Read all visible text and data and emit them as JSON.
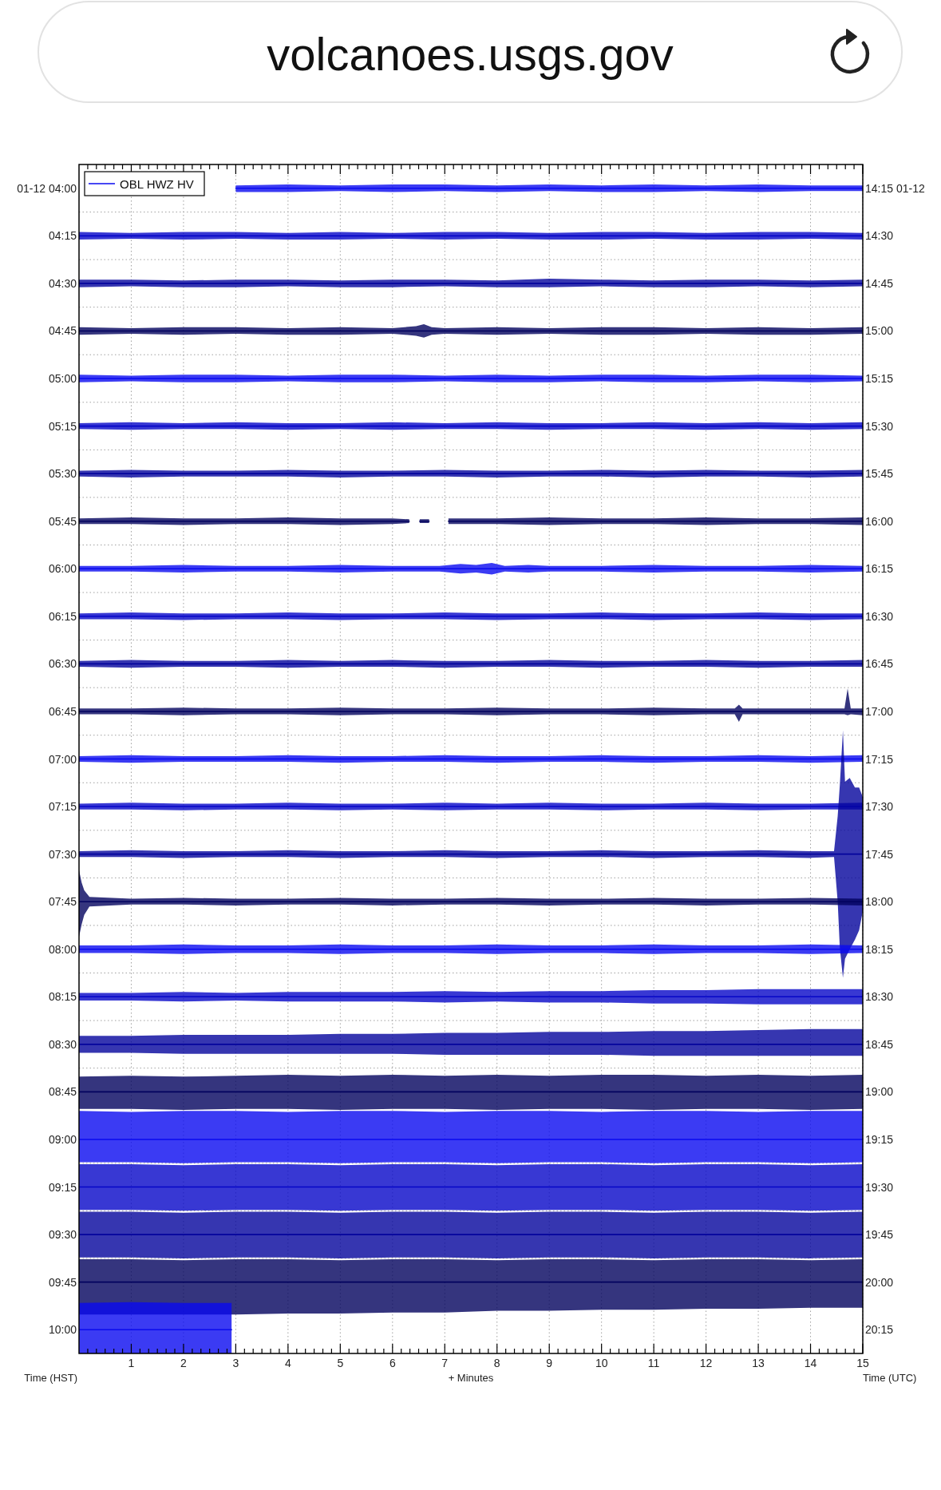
{
  "chart_data": {
    "type": "line",
    "annotations": [
      "volcanoes.usgs.gov"
    ],
    "xlabel": "+ Minutes",
    "ylabel": "Time (HST)",
    "y2label": "Time (UTC)",
    "legend": "top left",
    "grid": true,
    "xlim": [
      0,
      15
    ],
    "ylim": [
      10.125,
      3.875
    ],
    "y2lim": [
      20.375,
      14.125
    ],
    "xticks": [
      1,
      2,
      3,
      4,
      5,
      6,
      7,
      8,
      9,
      10,
      11,
      12,
      13,
      14,
      15,
      {
        "value": 0.167,
        "label": null
      },
      {
        "value": 0.333,
        "label": null
      },
      {
        "value": 0.5,
        "label": null
      },
      {
        "value": 0.667,
        "label": null
      },
      {
        "value": 0.833,
        "label": null
      },
      {
        "value": 1.167,
        "label": null
      },
      {
        "value": 1.333,
        "label": null
      },
      {
        "value": 1.5,
        "label": null
      },
      {
        "value": 1.667,
        "label": null
      },
      {
        "value": 1.833,
        "label": null
      },
      {
        "value": 2.167,
        "label": null
      },
      {
        "value": 2.333,
        "label": null
      },
      {
        "value": 2.5,
        "label": null
      },
      {
        "value": 2.667,
        "label": null
      },
      {
        "value": 2.833,
        "label": null
      },
      {
        "value": 3.167,
        "label": null
      },
      {
        "value": 3.333,
        "label": null
      },
      {
        "value": 3.5,
        "label": null
      },
      {
        "value": 3.667,
        "label": null
      },
      {
        "value": 3.833,
        "label": null
      },
      {
        "value": 4.167,
        "label": null
      },
      {
        "value": 4.333,
        "label": null
      },
      {
        "value": 4.5,
        "label": null
      },
      {
        "value": 4.667,
        "label": null
      },
      {
        "value": 4.833,
        "label": null
      },
      {
        "value": 5.167,
        "label": null
      },
      {
        "value": 5.333,
        "label": null
      },
      {
        "value": 5.5,
        "label": null
      },
      {
        "value": 5.667,
        "label": null
      },
      {
        "value": 5.833,
        "label": null
      },
      {
        "value": 6.167,
        "label": null
      },
      {
        "value": 6.333,
        "label": null
      },
      {
        "value": 6.5,
        "label": null
      },
      {
        "value": 6.667,
        "label": null
      },
      {
        "value": 6.833,
        "label": null
      },
      {
        "value": 7.167,
        "label": null
      },
      {
        "value": 7.333,
        "label": null
      },
      {
        "value": 7.5,
        "label": null
      },
      {
        "value": 7.667,
        "label": null
      },
      {
        "value": 7.833,
        "label": null
      },
      {
        "value": 8.167,
        "label": null
      },
      {
        "value": 8.333,
        "label": null
      },
      {
        "value": 8.5,
        "label": null
      },
      {
        "value": 8.667,
        "label": null
      },
      {
        "value": 8.833,
        "label": null
      },
      {
        "value": 9.167,
        "label": null
      },
      {
        "value": 9.333,
        "label": null
      },
      {
        "value": 9.5,
        "label": null
      },
      {
        "value": 9.667,
        "label": null
      },
      {
        "value": 9.833,
        "label": null
      },
      {
        "value": 10.167,
        "label": null
      },
      {
        "value": 10.333,
        "label": null
      },
      {
        "value": 10.5,
        "label": null
      },
      {
        "value": 10.667,
        "label": null
      },
      {
        "value": 10.833,
        "label": null
      },
      {
        "value": 11.167,
        "label": null
      },
      {
        "value": 11.333,
        "label": null
      },
      {
        "value": 11.5,
        "label": null
      },
      {
        "value": 11.667,
        "label": null
      },
      {
        "value": 11.833,
        "label": null
      },
      {
        "value": 12.167,
        "label": null
      },
      {
        "value": 12.333,
        "label": null
      },
      {
        "value": 12.5,
        "label": null
      },
      {
        "value": 12.667,
        "label": null
      },
      {
        "value": 12.833,
        "label": null
      },
      {
        "value": 13.167,
        "label": null
      },
      {
        "value": 13.333,
        "label": null
      },
      {
        "value": 13.5,
        "label": null
      },
      {
        "value": 13.667,
        "label": null
      },
      {
        "value": 13.833,
        "label": null
      },
      {
        "value": 14.167,
        "label": null
      },
      {
        "value": 14.333,
        "label": null
      },
      {
        "value": 14.5,
        "label": null
      },
      {
        "value": 14.667,
        "label": null
      },
      {
        "value": 14.833,
        "label": null
      }
    ],
    "yticks": [
      {
        "value": 4,
        "label": "01-12 04:00"
      },
      {
        "value": 4.25,
        "label": "04:15"
      },
      {
        "value": 4.5,
        "label": "04:30"
      },
      {
        "value": 4.75,
        "label": "04:45"
      },
      {
        "value": 5,
        "label": "05:00"
      },
      {
        "value": 5.25,
        "label": "05:15"
      },
      {
        "value": 5.5,
        "label": "05:30"
      },
      {
        "value": 5.75,
        "label": "05:45"
      },
      {
        "value": 6,
        "label": "06:00"
      },
      {
        "value": 6.25,
        "label": "06:15"
      },
      {
        "value": 6.5,
        "label": "06:30"
      },
      {
        "value": 6.75,
        "label": "06:45"
      },
      {
        "value": 7,
        "label": "07:00"
      },
      {
        "value": 7.25,
        "label": "07:15"
      },
      {
        "value": 7.5,
        "label": "07:30"
      },
      {
        "value": 7.75,
        "label": "07:45"
      },
      {
        "value": 8,
        "label": "08:00"
      },
      {
        "value": 8.25,
        "label": "08:15"
      },
      {
        "value": 8.5,
        "label": "08:30"
      },
      {
        "value": 8.75,
        "label": "08:45"
      },
      {
        "value": 9,
        "label": "09:00"
      },
      {
        "value": 9.25,
        "label": "09:15"
      },
      {
        "value": 9.5,
        "label": "09:30"
      },
      {
        "value": 9.75,
        "label": "09:45"
      },
      {
        "value": 10,
        "label": "10:00"
      },
      {
        "value": 4.125,
        "label": null
      },
      {
        "value": 4.375,
        "label": null
      },
      {
        "value": 4.625,
        "label": null
      },
      {
        "value": 4.875,
        "label": null
      },
      {
        "value": 5.125,
        "label": null
      },
      {
        "value": 5.375,
        "label": null
      },
      {
        "value": 5.625,
        "label": null
      },
      {
        "value": 5.875,
        "label": null
      },
      {
        "value": 6.125,
        "label": null
      },
      {
        "value": 6.375,
        "label": null
      },
      {
        "value": 6.625,
        "label": null
      },
      {
        "value": 6.875,
        "label": null
      },
      {
        "value": 7.125,
        "label": null
      },
      {
        "value": 7.375,
        "label": null
      },
      {
        "value": 7.625,
        "label": null
      },
      {
        "value": 7.875,
        "label": null
      },
      {
        "value": 8.125,
        "label": null
      },
      {
        "value": 8.375,
        "label": null
      },
      {
        "value": 8.625,
        "label": null
      },
      {
        "value": 9.125,
        "label": null
      },
      {
        "value": 9.375,
        "label": null
      },
      {
        "value": 9.625,
        "label": null
      }
    ],
    "y2ticks": [
      {
        "value": 14.25,
        "label": "14:15 01-12"
      },
      {
        "value": 14.5,
        "label": "14:30"
      },
      {
        "value": 14.75,
        "label": "14:45"
      },
      {
        "value": 15,
        "label": "15:00"
      },
      {
        "value": 15.25,
        "label": "15:15"
      },
      {
        "value": 15.5,
        "label": "15:30"
      },
      {
        "value": 15.75,
        "label": "15:45"
      },
      {
        "value": 16,
        "label": "16:00"
      },
      {
        "value": 16.25,
        "label": "16:15"
      },
      {
        "value": 16.5,
        "label": "16:30"
      },
      {
        "value": 16.75,
        "label": "16:45"
      },
      {
        "value": 17,
        "label": "17:00"
      },
      {
        "value": 17.25,
        "label": "17:15"
      },
      {
        "value": 17.5,
        "label": "17:30"
      },
      {
        "value": 17.75,
        "label": "17:45"
      },
      {
        "value": 18,
        "label": "18:00"
      },
      {
        "value": 18.25,
        "label": "18:15"
      },
      {
        "value": 18.5,
        "label": "18:30"
      },
      {
        "value": 18.75,
        "label": "18:45"
      },
      {
        "value": 19,
        "label": "19:00"
      },
      {
        "value": 19.25,
        "label": "19:15"
      },
      {
        "value": 19.5,
        "label": "19:30"
      },
      {
        "value": 19.75,
        "label": "19:45"
      },
      {
        "value": 20,
        "label": "20:00"
      },
      {
        "value": 20.25,
        "label": "20:15"
      }
    ],
    "x": [
      0,
      1,
      2,
      3,
      4,
      5,
      6,
      7,
      8,
      9,
      10,
      11,
      12,
      13,
      14,
      15
    ],
    "series": [
      {
        "name": "OBL HWZ HV",
        "color": "#0a0af0",
        "x": [
          3,
          4,
          5,
          6,
          7,
          8,
          9,
          10,
          11,
          12,
          13,
          14,
          15
        ],
        "values": [
          4,
          4,
          4,
          4,
          4,
          4,
          4,
          4,
          4,
          4,
          4,
          4,
          4
        ],
        "lower": [
          3.985,
          3.98,
          3.985,
          3.98,
          3.98,
          3.985,
          3.98,
          3.985,
          3.98,
          3.985,
          3.98,
          3.985,
          3.985
        ],
        "upper": [
          4.02,
          4.02,
          4.015,
          4.02,
          4.015,
          4.02,
          4.015,
          4.02,
          4.02,
          4.015,
          4.02,
          4.015,
          4.015
        ]
      },
      {
        "color": "#0606c8",
        "values": [
          4.25,
          4.25,
          4.25,
          4.25,
          4.25,
          4.25,
          4.25,
          4.25,
          4.25,
          4.25,
          4.25,
          4.25,
          4.25,
          4.25,
          4.25,
          4.25
        ],
        "lower": [
          4.23,
          4.235,
          4.23,
          4.23,
          4.235,
          4.23,
          4.235,
          4.23,
          4.23,
          4.235,
          4.23,
          4.23,
          4.235,
          4.23,
          4.23,
          4.235
        ],
        "upper": [
          4.27,
          4.265,
          4.27,
          4.265,
          4.27,
          4.27,
          4.265,
          4.27,
          4.265,
          4.27,
          4.27,
          4.265,
          4.27,
          4.27,
          4.265,
          4.27
        ]
      },
      {
        "color": "#04049c",
        "values": [
          4.5,
          4.5,
          4.5,
          4.5,
          4.5,
          4.5,
          4.5,
          4.5,
          4.5,
          4.5,
          4.5,
          4.5,
          4.5,
          4.5,
          4.5,
          4.5
        ],
        "lower": [
          4.48,
          4.48,
          4.485,
          4.48,
          4.48,
          4.485,
          4.48,
          4.48,
          4.485,
          4.475,
          4.48,
          4.485,
          4.48,
          4.48,
          4.485,
          4.48
        ],
        "upper": [
          4.52,
          4.515,
          4.52,
          4.52,
          4.515,
          4.52,
          4.52,
          4.515,
          4.52,
          4.52,
          4.515,
          4.52,
          4.52,
          4.515,
          4.52,
          4.515
        ]
      },
      {
        "color": "#02025e",
        "x": [
          0,
          1,
          2,
          3,
          4,
          5,
          6,
          6.45,
          6.6,
          6.75,
          7,
          8,
          9,
          10,
          11,
          12,
          13,
          14,
          15
        ],
        "values": [
          4.75,
          4.75,
          4.75,
          4.75,
          4.75,
          4.75,
          4.75,
          4.75,
          4.75,
          4.75,
          4.75,
          4.75,
          4.75,
          4.75,
          4.75,
          4.75,
          4.75,
          4.75,
          4.75
        ],
        "lower": [
          4.73,
          4.735,
          4.73,
          4.73,
          4.735,
          4.73,
          4.735,
          4.725,
          4.715,
          4.73,
          4.735,
          4.73,
          4.735,
          4.73,
          4.73,
          4.735,
          4.73,
          4.735,
          4.73
        ],
        "upper": [
          4.77,
          4.765,
          4.77,
          4.765,
          4.77,
          4.77,
          4.765,
          4.775,
          4.785,
          4.77,
          4.765,
          4.77,
          4.765,
          4.77,
          4.77,
          4.765,
          4.77,
          4.77,
          4.765
        ]
      },
      {
        "color": "#0a0af0",
        "values": [
          5,
          5,
          5,
          5,
          5,
          5,
          5,
          5,
          5,
          5,
          5,
          5,
          5,
          5,
          5,
          5
        ],
        "lower": [
          4.98,
          4.985,
          4.98,
          4.98,
          4.985,
          4.98,
          4.98,
          4.985,
          4.98,
          4.985,
          4.98,
          4.98,
          4.985,
          4.98,
          4.98,
          4.985
        ],
        "upper": [
          5.02,
          5.015,
          5.02,
          5.02,
          5.015,
          5.02,
          5.02,
          5.015,
          5.02,
          5.02,
          5.015,
          5.02,
          5.02,
          5.015,
          5.02,
          5.015
        ]
      },
      {
        "color": "#0606c8",
        "values": [
          5.25,
          5.25,
          5.25,
          5.25,
          5.25,
          5.25,
          5.25,
          5.25,
          5.25,
          5.25,
          5.25,
          5.25,
          5.25,
          5.25,
          5.25,
          5.25
        ],
        "lower": [
          5.235,
          5.23,
          5.235,
          5.23,
          5.235,
          5.235,
          5.23,
          5.235,
          5.23,
          5.235,
          5.235,
          5.23,
          5.235,
          5.23,
          5.235,
          5.23
        ],
        "upper": [
          5.265,
          5.27,
          5.265,
          5.265,
          5.27,
          5.265,
          5.27,
          5.265,
          5.265,
          5.27,
          5.265,
          5.265,
          5.27,
          5.265,
          5.27,
          5.265
        ]
      },
      {
        "color": "#04049c",
        "values": [
          5.5,
          5.5,
          5.5,
          5.5,
          5.5,
          5.5,
          5.5,
          5.5,
          5.5,
          5.5,
          5.5,
          5.5,
          5.5,
          5.5,
          5.5,
          5.5
        ],
        "lower": [
          5.485,
          5.48,
          5.485,
          5.485,
          5.48,
          5.485,
          5.485,
          5.48,
          5.485,
          5.485,
          5.48,
          5.485,
          5.48,
          5.485,
          5.485,
          5.48
        ],
        "upper": [
          5.515,
          5.52,
          5.515,
          5.515,
          5.515,
          5.52,
          5.515,
          5.515,
          5.52,
          5.515,
          5.515,
          5.52,
          5.515,
          5.515,
          5.52,
          5.515
        ]
      },
      {
        "color": "#02025e",
        "x": [
          0,
          1,
          2,
          3,
          4,
          5,
          6,
          6.32,
          6.42,
          6.52,
          6.7,
          6.9,
          7.07,
          8,
          9,
          10,
          11,
          12,
          13,
          14,
          15
        ],
        "values": [
          5.75,
          5.75,
          5.75,
          5.75,
          5.75,
          5.75,
          5.75,
          5.75,
          null,
          5.75,
          5.75,
          null,
          5.75,
          5.75,
          5.75,
          5.75,
          5.75,
          5.75,
          5.75,
          5.75,
          5.75
        ],
        "lower": [
          5.735,
          5.73,
          5.735,
          5.735,
          5.73,
          5.735,
          5.735,
          5.74,
          null,
          5.74,
          5.74,
          null,
          5.735,
          5.735,
          5.73,
          5.735,
          5.735,
          5.73,
          5.735,
          5.735,
          5.73
        ],
        "upper": [
          5.765,
          5.765,
          5.77,
          5.765,
          5.765,
          5.77,
          5.765,
          5.76,
          null,
          5.76,
          5.76,
          null,
          5.765,
          5.765,
          5.77,
          5.765,
          5.765,
          5.77,
          5.765,
          5.765,
          5.77
        ]
      },
      {
        "color": "#0a0af0",
        "x": [
          0,
          1,
          2,
          3,
          4,
          5,
          6,
          6.9,
          7.3,
          7.6,
          7.9,
          8.15,
          8.6,
          9,
          10,
          11,
          12,
          13,
          14,
          15
        ],
        "values": [
          6,
          6,
          6,
          6,
          6,
          6,
          6,
          6,
          6,
          6,
          6,
          6,
          6,
          6,
          6,
          6,
          6,
          6,
          6,
          6
        ],
        "lower": [
          5.985,
          5.985,
          5.98,
          5.985,
          5.985,
          5.98,
          5.985,
          5.985,
          5.975,
          5.98,
          5.97,
          5.985,
          5.98,
          5.985,
          5.985,
          5.98,
          5.985,
          5.985,
          5.98,
          5.985
        ],
        "upper": [
          6.015,
          6.015,
          6.02,
          6.015,
          6.015,
          6.02,
          6.015,
          6.015,
          6.025,
          6.02,
          6.03,
          6.015,
          6.02,
          6.015,
          6.015,
          6.02,
          6.015,
          6.015,
          6.02,
          6.015
        ]
      },
      {
        "color": "#0606c8",
        "values": [
          6.25,
          6.25,
          6.25,
          6.25,
          6.25,
          6.25,
          6.25,
          6.25,
          6.25,
          6.25,
          6.25,
          6.25,
          6.25,
          6.25,
          6.25,
          6.25
        ],
        "lower": [
          6.235,
          6.23,
          6.235,
          6.235,
          6.23,
          6.235,
          6.235,
          6.23,
          6.235,
          6.235,
          6.23,
          6.235,
          6.235,
          6.23,
          6.235,
          6.235
        ],
        "upper": [
          6.265,
          6.265,
          6.27,
          6.265,
          6.265,
          6.27,
          6.265,
          6.265,
          6.27,
          6.265,
          6.265,
          6.27,
          6.265,
          6.265,
          6.27,
          6.265
        ]
      },
      {
        "color": "#04049c",
        "values": [
          6.5,
          6.5,
          6.5,
          6.5,
          6.5,
          6.5,
          6.5,
          6.5,
          6.5,
          6.5,
          6.5,
          6.5,
          6.5,
          6.5,
          6.5,
          6.5
        ],
        "lower": [
          6.485,
          6.48,
          6.485,
          6.485,
          6.48,
          6.485,
          6.48,
          6.485,
          6.485,
          6.48,
          6.485,
          6.485,
          6.48,
          6.485,
          6.485,
          6.48
        ],
        "upper": [
          6.515,
          6.52,
          6.515,
          6.515,
          6.52,
          6.515,
          6.515,
          6.52,
          6.515,
          6.515,
          6.52,
          6.515,
          6.515,
          6.52,
          6.515,
          6.515
        ]
      },
      {
        "color": "#02025e",
        "x": [
          0,
          1,
          2,
          3,
          4,
          5,
          6,
          7,
          8,
          9,
          10,
          11,
          12,
          12.55,
          12.63,
          12.7,
          13,
          14,
          14.65,
          14.71,
          14.77,
          15
        ],
        "values": [
          6.75,
          6.75,
          6.75,
          6.75,
          6.75,
          6.75,
          6.75,
          6.75,
          6.75,
          6.75,
          6.75,
          6.75,
          6.75,
          6.75,
          6.75,
          6.75,
          6.75,
          6.75,
          6.75,
          6.75,
          6.75,
          6.75
        ],
        "lower": [
          6.735,
          6.735,
          6.73,
          6.735,
          6.735,
          6.73,
          6.735,
          6.735,
          6.73,
          6.735,
          6.735,
          6.73,
          6.735,
          6.735,
          6.715,
          6.735,
          6.735,
          6.735,
          6.735,
          6.63,
          6.735,
          6.735
        ],
        "upper": [
          6.765,
          6.765,
          6.77,
          6.765,
          6.765,
          6.77,
          6.765,
          6.765,
          6.77,
          6.765,
          6.765,
          6.77,
          6.765,
          6.765,
          6.805,
          6.765,
          6.765,
          6.765,
          6.765,
          6.77,
          6.765,
          6.77
        ]
      },
      {
        "color": "#0a0af0",
        "values": [
          7,
          7,
          7,
          7,
          7,
          7,
          7,
          7,
          7,
          7,
          7,
          7,
          7,
          7,
          7,
          7
        ],
        "lower": [
          6.985,
          6.98,
          6.985,
          6.985,
          6.98,
          6.985,
          6.985,
          6.98,
          6.985,
          6.985,
          6.98,
          6.985,
          6.985,
          6.98,
          6.985,
          6.98
        ],
        "upper": [
          7.015,
          7.02,
          7.015,
          7.015,
          7.015,
          7.02,
          7.015,
          7.015,
          7.02,
          7.015,
          7.015,
          7.02,
          7.015,
          7.015,
          7.02,
          7.015
        ]
      },
      {
        "color": "#0606c8",
        "values": [
          7.25,
          7.25,
          7.25,
          7.25,
          7.25,
          7.25,
          7.25,
          7.25,
          7.25,
          7.25,
          7.25,
          7.25,
          7.25,
          7.25,
          7.25,
          7.25
        ],
        "lower": [
          7.235,
          7.23,
          7.235,
          7.235,
          7.23,
          7.235,
          7.235,
          7.23,
          7.235,
          7.23,
          7.235,
          7.235,
          7.23,
          7.235,
          7.235,
          7.23
        ],
        "upper": [
          7.265,
          7.265,
          7.27,
          7.265,
          7.265,
          7.27,
          7.265,
          7.27,
          7.265,
          7.265,
          7.27,
          7.265,
          7.265,
          7.27,
          7.265,
          7.265
        ]
      },
      {
        "color": "#04049c",
        "x": [
          0,
          1,
          2,
          3,
          4,
          5,
          6,
          7,
          8,
          9,
          10,
          11,
          12,
          13,
          14,
          14.45,
          14.52,
          14.56,
          14.62,
          14.66,
          14.75,
          14.85,
          14.93,
          15
        ],
        "values": [
          7.5,
          7.5,
          7.5,
          7.5,
          7.5,
          7.5,
          7.5,
          7.5,
          7.5,
          7.5,
          7.5,
          7.5,
          7.5,
          7.5,
          7.5,
          7.5,
          7.5,
          7.5,
          7.5,
          7.5,
          7.5,
          7.5,
          7.5,
          7.5
        ],
        "lower": [
          7.485,
          7.48,
          7.485,
          7.485,
          7.48,
          7.485,
          7.485,
          7.48,
          7.485,
          7.485,
          7.48,
          7.485,
          7.485,
          7.48,
          7.485,
          7.485,
          7.3,
          7.14,
          6.85,
          7.12,
          7.1,
          7.15,
          7.15,
          7.2
        ],
        "upper": [
          7.515,
          7.515,
          7.52,
          7.515,
          7.515,
          7.52,
          7.515,
          7.515,
          7.52,
          7.515,
          7.515,
          7.52,
          7.515,
          7.515,
          7.52,
          7.515,
          7.75,
          7.99,
          8.15,
          8.05,
          8,
          7.95,
          7.9,
          7.8
        ]
      },
      {
        "color": "#02025e",
        "x": [
          0,
          0.05,
          0.1,
          0.2,
          1,
          2,
          3,
          4,
          5,
          6,
          7,
          8,
          9,
          10,
          11,
          12,
          13,
          14,
          15
        ],
        "values": [
          7.75,
          7.75,
          7.75,
          7.75,
          7.75,
          7.75,
          7.75,
          7.75,
          7.75,
          7.75,
          7.75,
          7.75,
          7.75,
          7.75,
          7.75,
          7.75,
          7.75,
          7.75,
          7.75
        ],
        "lower": [
          7.585,
          7.65,
          7.69,
          7.725,
          7.735,
          7.73,
          7.735,
          7.735,
          7.73,
          7.735,
          7.735,
          7.73,
          7.735,
          7.735,
          7.73,
          7.735,
          7.735,
          7.73,
          7.735
        ],
        "upper": [
          7.935,
          7.87,
          7.82,
          7.775,
          7.765,
          7.765,
          7.77,
          7.765,
          7.765,
          7.77,
          7.765,
          7.765,
          7.77,
          7.765,
          7.765,
          7.77,
          7.765,
          7.765,
          7.77
        ]
      },
      {
        "color": "#0a0af0",
        "values": [
          8,
          8,
          8,
          8,
          8,
          8,
          8,
          8,
          8,
          8,
          8,
          8,
          8,
          8,
          8,
          8
        ],
        "lower": [
          7.98,
          7.98,
          7.975,
          7.98,
          7.98,
          7.975,
          7.98,
          7.98,
          7.975,
          7.98,
          7.98,
          7.975,
          7.98,
          7.98,
          7.975,
          7.98
        ],
        "upper": [
          8.02,
          8.02,
          8.025,
          8.02,
          8.02,
          8.025,
          8.02,
          8.02,
          8.025,
          8.02,
          8.02,
          8.025,
          8.02,
          8.02,
          8.025,
          8.02
        ]
      },
      {
        "color": "#0606c8",
        "values": [
          8.25,
          8.25,
          8.25,
          8.25,
          8.25,
          8.25,
          8.25,
          8.25,
          8.25,
          8.25,
          8.25,
          8.25,
          8.25,
          8.25,
          8.25,
          8.25
        ],
        "lower": [
          8.23,
          8.23,
          8.225,
          8.23,
          8.225,
          8.225,
          8.225,
          8.22,
          8.225,
          8.22,
          8.22,
          8.215,
          8.215,
          8.21,
          8.21,
          8.21
        ],
        "upper": [
          8.27,
          8.27,
          8.275,
          8.27,
          8.275,
          8.275,
          8.275,
          8.28,
          8.275,
          8.28,
          8.28,
          8.285,
          8.285,
          8.29,
          8.29,
          8.29
        ]
      },
      {
        "color": "#04049c",
        "values": [
          8.5,
          8.5,
          8.5,
          8.5,
          8.5,
          8.5,
          8.5,
          8.5,
          8.5,
          8.5,
          8.5,
          8.5,
          8.5,
          8.5,
          8.5,
          8.5
        ],
        "lower": [
          8.455,
          8.455,
          8.45,
          8.45,
          8.45,
          8.445,
          8.445,
          8.44,
          8.44,
          8.435,
          8.435,
          8.43,
          8.43,
          8.425,
          8.42,
          8.42
        ],
        "upper": [
          8.545,
          8.545,
          8.55,
          8.55,
          8.55,
          8.55,
          8.55,
          8.555,
          8.555,
          8.555,
          8.555,
          8.56,
          8.56,
          8.56,
          8.56,
          8.56
        ]
      },
      {
        "color": "#02025e",
        "values": [
          8.75,
          8.75,
          8.75,
          8.75,
          8.75,
          8.75,
          8.75,
          8.75,
          8.75,
          8.75,
          8.75,
          8.75,
          8.75,
          8.75,
          8.75,
          8.75
        ],
        "lower": [
          8.67,
          8.665,
          8.67,
          8.665,
          8.66,
          8.665,
          8.66,
          8.665,
          8.66,
          8.665,
          8.66,
          8.66,
          8.665,
          8.66,
          8.665,
          8.66
        ],
        "upper": [
          8.84,
          8.84,
          8.845,
          8.84,
          8.84,
          8.845,
          8.84,
          8.84,
          8.845,
          8.84,
          8.84,
          8.845,
          8.84,
          8.84,
          8.845,
          8.84
        ]
      },
      {
        "color": "#0a0af0",
        "values": [
          9,
          9,
          9,
          9,
          9,
          9,
          9,
          9,
          9,
          9,
          9,
          9,
          9,
          9,
          9,
          9
        ],
        "lower": [
          8.85,
          8.855,
          8.85,
          8.85,
          8.855,
          8.85,
          8.85,
          8.855,
          8.85,
          8.85,
          8.855,
          8.85,
          8.85,
          8.855,
          8.85,
          8.85
        ],
        "upper": [
          9.12,
          9.12,
          9.125,
          9.12,
          9.12,
          9.125,
          9.12,
          9.12,
          9.125,
          9.12,
          9.12,
          9.125,
          9.12,
          9.12,
          9.125,
          9.12
        ]
      },
      {
        "color": "#0606c8",
        "values": [
          9.25,
          9.25,
          9.25,
          9.25,
          9.25,
          9.25,
          9.25,
          9.25,
          9.25,
          9.25,
          9.25,
          9.25,
          9.25,
          9.25,
          9.25,
          9.25
        ],
        "lower": [
          9.13,
          9.13,
          9.135,
          9.13,
          9.13,
          9.135,
          9.13,
          9.13,
          9.135,
          9.13,
          9.13,
          9.135,
          9.13,
          9.13,
          9.135,
          9.13
        ],
        "upper": [
          9.37,
          9.37,
          9.375,
          9.37,
          9.37,
          9.375,
          9.37,
          9.37,
          9.375,
          9.37,
          9.37,
          9.375,
          9.37,
          9.37,
          9.375,
          9.37
        ]
      },
      {
        "color": "#04049c",
        "values": [
          9.5,
          9.5,
          9.5,
          9.5,
          9.5,
          9.5,
          9.5,
          9.5,
          9.5,
          9.5,
          9.5,
          9.5,
          9.5,
          9.5,
          9.5,
          9.5
        ],
        "lower": [
          9.38,
          9.38,
          9.385,
          9.38,
          9.38,
          9.385,
          9.38,
          9.38,
          9.385,
          9.38,
          9.38,
          9.385,
          9.38,
          9.38,
          9.385,
          9.38
        ],
        "upper": [
          9.62,
          9.62,
          9.625,
          9.62,
          9.62,
          9.625,
          9.62,
          9.62,
          9.625,
          9.62,
          9.62,
          9.625,
          9.62,
          9.62,
          9.625,
          9.62
        ]
      },
      {
        "color": "#02025e",
        "values": [
          9.75,
          9.75,
          9.75,
          9.75,
          9.75,
          9.75,
          9.75,
          9.75,
          9.75,
          9.75,
          9.75,
          9.75,
          9.75,
          9.75,
          9.75,
          9.75
        ],
        "lower": [
          9.63,
          9.63,
          9.635,
          9.63,
          9.63,
          9.635,
          9.63,
          9.63,
          9.635,
          9.63,
          9.63,
          9.635,
          9.63,
          9.63,
          9.635,
          9.63
        ],
        "upper": [
          9.92,
          9.92,
          9.92,
          9.92,
          9.915,
          9.915,
          9.91,
          9.91,
          9.9,
          9.9,
          9.895,
          9.895,
          9.89,
          9.89,
          9.885,
          9.885
        ]
      },
      {
        "color": "#0a0af0",
        "x": [
          0,
          1,
          2,
          2.92
        ],
        "values": [
          10,
          10,
          10,
          10
        ],
        "lower": [
          9.86,
          9.855,
          9.86,
          9.86
        ],
        "upper": [
          10.125,
          10.125,
          10.125,
          10.125
        ]
      }
    ]
  }
}
